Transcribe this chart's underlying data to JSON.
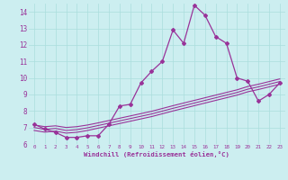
{
  "xlabel": "Windchill (Refroidissement éolien,°C)",
  "bg_color": "#cceef0",
  "grid_color": "#aadddd",
  "line_color": "#993399",
  "xlim": [
    -0.5,
    23.5
  ],
  "ylim": [
    6,
    14.5
  ],
  "yticks": [
    6,
    7,
    8,
    9,
    10,
    11,
    12,
    13,
    14
  ],
  "xticks": [
    0,
    1,
    2,
    3,
    4,
    5,
    6,
    7,
    8,
    9,
    10,
    11,
    12,
    13,
    14,
    15,
    16,
    17,
    18,
    19,
    20,
    21,
    22,
    23
  ],
  "line1_x": [
    0,
    1,
    2,
    3,
    4,
    5,
    6,
    7,
    8,
    9,
    10,
    11,
    12,
    13,
    14,
    15,
    16,
    17,
    18,
    19,
    20,
    21,
    22,
    23
  ],
  "line1_y": [
    7.2,
    6.9,
    6.7,
    6.4,
    6.4,
    6.5,
    6.5,
    7.2,
    8.3,
    8.4,
    9.7,
    10.4,
    11.0,
    12.9,
    12.1,
    14.4,
    13.8,
    12.5,
    12.1,
    10.0,
    9.8,
    8.6,
    9.0,
    9.7
  ],
  "line2_x": [
    0,
    1,
    2,
    3,
    4,
    5,
    6,
    7,
    8,
    9,
    10,
    11,
    12,
    13,
    14,
    15,
    16,
    17,
    18,
    19,
    20,
    21,
    22,
    23
  ],
  "line2_y": [
    7.15,
    7.05,
    7.1,
    7.0,
    7.05,
    7.15,
    7.28,
    7.42,
    7.56,
    7.7,
    7.84,
    7.98,
    8.15,
    8.32,
    8.48,
    8.64,
    8.8,
    8.96,
    9.12,
    9.28,
    9.48,
    9.62,
    9.78,
    9.94
  ],
  "line3_x": [
    0,
    1,
    2,
    3,
    4,
    5,
    6,
    7,
    8,
    9,
    10,
    11,
    12,
    13,
    14,
    15,
    16,
    17,
    18,
    19,
    20,
    21,
    22,
    23
  ],
  "line3_y": [
    7.0,
    6.88,
    6.94,
    6.82,
    6.87,
    6.98,
    7.12,
    7.26,
    7.4,
    7.54,
    7.68,
    7.82,
    7.99,
    8.16,
    8.32,
    8.48,
    8.64,
    8.8,
    8.96,
    9.12,
    9.32,
    9.46,
    9.62,
    9.78
  ],
  "line4_x": [
    0,
    1,
    2,
    3,
    4,
    5,
    6,
    7,
    8,
    9,
    10,
    11,
    12,
    13,
    14,
    15,
    16,
    17,
    18,
    19,
    20,
    21,
    22,
    23
  ],
  "line4_y": [
    6.82,
    6.72,
    6.78,
    6.66,
    6.71,
    6.82,
    6.96,
    7.1,
    7.24,
    7.38,
    7.52,
    7.66,
    7.83,
    8.0,
    8.16,
    8.32,
    8.48,
    8.64,
    8.8,
    8.96,
    9.16,
    9.3,
    9.46,
    9.62
  ]
}
